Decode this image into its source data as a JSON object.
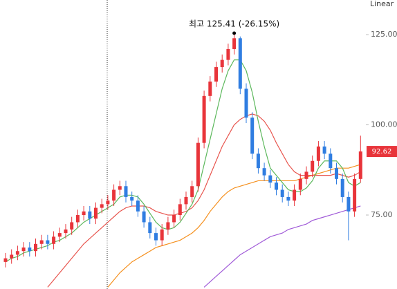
{
  "chart_data": {
    "type": "candlestick",
    "scale_label": "Linear",
    "annotation": "최고 125.41 (-26.15%)",
    "annotation_index": 38,
    "up_color": "#e8343a",
    "down_color": "#2f7de1",
    "ylim": [
      54.5,
      134.6
    ],
    "yticks": [
      {
        "value": 75,
        "label": "75.00"
      },
      {
        "value": 100,
        "label": "100.00"
      },
      {
        "value": 125,
        "label": "125.00"
      }
    ],
    "open": [
      62,
      63,
      64,
      65,
      66,
      65,
      67,
      68,
      67,
      69,
      70,
      71,
      73,
      75,
      76,
      74,
      77,
      78,
      79,
      82,
      83,
      80,
      79,
      76,
      73,
      70,
      68,
      71,
      73,
      75,
      78,
      80,
      83,
      95,
      108,
      112,
      116,
      118,
      121,
      124,
      110,
      102,
      92,
      88,
      86,
      84,
      82,
      80,
      79,
      82,
      85,
      87,
      90,
      94,
      92,
      88,
      85,
      80,
      76,
      85
    ],
    "high": [
      64.5,
      65.5,
      66.5,
      67.5,
      67.5,
      68.5,
      69.5,
      69.5,
      70.5,
      71.5,
      72.5,
      74.5,
      76.5,
      77.5,
      77.5,
      78.5,
      79.5,
      80.5,
      83.5,
      84.5,
      84.5,
      81.5,
      80.5,
      77.5,
      74.5,
      71.5,
      72.5,
      74.5,
      76.5,
      79.5,
      81.5,
      84.5,
      96.5,
      109.5,
      113.5,
      117.5,
      119.5,
      122.5,
      125.41,
      124.5,
      111.5,
      103.5,
      93.5,
      89.5,
      87.5,
      85.5,
      83.5,
      81.5,
      83.5,
      86.5,
      88.5,
      91.5,
      95.5,
      95.5,
      93.5,
      89.5,
      86.5,
      81.5,
      86.5,
      97
    ],
    "low": [
      60.5,
      61.5,
      62.5,
      63.5,
      63.5,
      63.5,
      65.5,
      65.5,
      65.5,
      67.5,
      68.5,
      69.5,
      71.5,
      73.5,
      72.5,
      72.5,
      75.5,
      76.5,
      77.5,
      80.5,
      78.5,
      77.5,
      74.5,
      71.5,
      68.5,
      66.5,
      66.5,
      69.5,
      71.5,
      73.5,
      76.5,
      78.5,
      81.5,
      93.5,
      106.5,
      110.5,
      114.5,
      116.5,
      119.5,
      108.5,
      100.5,
      90.5,
      86.5,
      84.5,
      82.5,
      80.5,
      78.5,
      77.5,
      77.5,
      80.5,
      83.5,
      85.5,
      88.5,
      90.5,
      86.5,
      83.5,
      78.5,
      68,
      74.5,
      84
    ],
    "close": [
      63,
      64,
      65,
      66,
      65,
      67,
      68,
      67,
      69,
      70,
      71,
      73,
      75,
      76,
      74,
      77,
      78,
      79,
      82,
      83,
      80,
      79,
      76,
      73,
      70,
      68,
      71,
      73,
      75,
      78,
      80,
      83,
      95,
      108,
      112,
      116,
      118,
      121,
      124,
      110,
      102,
      92,
      88,
      86,
      84,
      82,
      80,
      79,
      82,
      85,
      87,
      90,
      94,
      92,
      88,
      85,
      80,
      76,
      85,
      92.62
    ],
    "series": [
      {
        "color": "#a05ad8",
        "values": [
          null,
          null,
          null,
          null,
          null,
          null,
          null,
          null,
          null,
          null,
          null,
          null,
          null,
          null,
          null,
          null,
          null,
          null,
          null,
          null,
          null,
          null,
          null,
          null,
          null,
          null,
          null,
          null,
          null,
          null,
          null,
          null,
          null,
          55,
          56.5,
          58,
          59.5,
          61,
          62.5,
          64,
          65,
          66,
          67,
          68,
          69,
          69.5,
          70,
          71,
          71.5,
          72,
          72.5,
          73.5,
          74,
          74.5,
          75,
          75.5,
          76,
          76.5,
          77,
          77.5
        ]
      },
      {
        "color": "#f5901e",
        "values": [
          null,
          null,
          null,
          null,
          null,
          null,
          null,
          null,
          null,
          null,
          null,
          null,
          null,
          null,
          null,
          null,
          null,
          55,
          57,
          59,
          60.5,
          62,
          63,
          64,
          65,
          66,
          66.5,
          67,
          67.5,
          68,
          69,
          70,
          71.5,
          73.5,
          76,
          78,
          80,
          81.5,
          82.5,
          83,
          83.5,
          84,
          84.5,
          84.5,
          84.5,
          84.5,
          84.5,
          84.5,
          84.5,
          85,
          85.5,
          86,
          86.5,
          87,
          87.5,
          88,
          88,
          88,
          88.5,
          89
        ]
      },
      {
        "color": "#e8554e",
        "values": [
          null,
          null,
          null,
          null,
          null,
          null,
          null,
          55,
          57,
          59,
          61,
          63,
          65,
          67,
          68.5,
          70,
          71.5,
          73,
          74.5,
          76,
          77,
          77.5,
          77.5,
          77.5,
          77,
          76,
          75.5,
          75,
          75,
          75.5,
          76,
          77,
          79,
          82,
          86,
          90,
          94,
          97,
          100,
          101.5,
          102.5,
          103,
          102.5,
          101,
          98.5,
          95,
          92,
          89,
          87,
          86,
          86,
          86,
          86,
          86,
          86,
          86.5,
          86,
          85.5,
          86,
          87
        ]
      },
      {
        "color": "#5cb85c",
        "values": [
          62,
          63,
          63.5,
          64.5,
          65,
          65.5,
          66,
          66.5,
          67.5,
          68,
          69,
          70,
          71.5,
          73,
          74,
          75,
          76,
          77,
          78,
          80,
          80.5,
          80.5,
          80,
          78,
          75.5,
          73,
          71.5,
          71,
          71.5,
          73,
          75.5,
          78,
          82,
          89,
          96,
          103,
          110,
          115,
          118,
          118,
          115,
          109,
          101,
          94,
          88,
          86,
          84,
          82,
          81.5,
          81.5,
          82.5,
          84.5,
          88,
          90,
          90,
          90,
          88,
          84,
          83,
          84
        ]
      }
    ]
  }
}
